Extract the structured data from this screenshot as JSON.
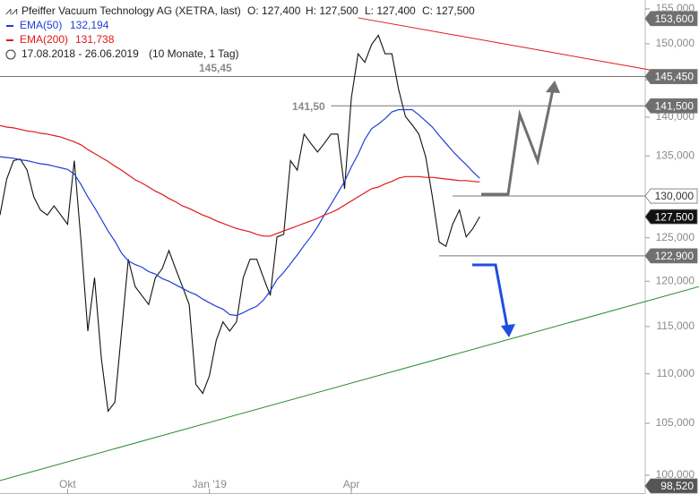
{
  "chart_data": {
    "type": "line",
    "title": "Pfeiffer Vacuum Technology AG (XETRA, last)",
    "ohlc": [
      "O: 127,400",
      "H: 127,500",
      "L: 127,400",
      "C: 127,500"
    ],
    "period": "17.08.2018 - 26.06.2019",
    "period_note": "(10 Monate, 1 Tag)",
    "log_scale": true,
    "categories": [
      null,
      null,
      null,
      null,
      null,
      null,
      null,
      null,
      null,
      null,
      "Okt",
      null,
      null,
      null,
      null,
      null,
      null,
      null,
      null,
      null,
      null,
      null,
      null,
      null,
      null,
      null,
      null,
      null,
      null,
      null,
      null,
      "Jan '19",
      null,
      null,
      null,
      null,
      null,
      null,
      null,
      null,
      null,
      null,
      null,
      null,
      null,
      null,
      null,
      null,
      null,
      null,
      null,
      null,
      "Apr",
      null,
      null,
      null,
      null,
      null,
      null,
      null,
      null,
      null,
      null,
      null,
      null,
      null,
      null,
      null,
      null,
      null,
      null,
      null
    ],
    "xlim": [
      0,
      95.5
    ],
    "ylim": [
      98.25,
      156.3
    ],
    "yticks": [
      {
        "value": 100,
        "label": "100,000"
      },
      {
        "value": 105,
        "label": "105,000"
      },
      {
        "value": 110,
        "label": "110,000"
      },
      {
        "value": 115,
        "label": "115,000"
      },
      {
        "value": 120,
        "label": "120,000"
      },
      {
        "value": 125,
        "label": "125,000"
      },
      {
        "value": 130,
        "label": "130,000"
      },
      {
        "value": 135,
        "label": "135,000"
      },
      {
        "value": 140,
        "label": "140,000"
      },
      {
        "value": 145,
        "label": "145,000"
      },
      {
        "value": 150,
        "label": "150,000"
      },
      {
        "value": 155,
        "label": "155,000"
      }
    ],
    "series": [
      {
        "color": "#111111",
        "values": [
          127.7,
          132.1,
          134.4,
          134.6,
          133.2,
          129.9,
          128.3,
          127.7,
          128.8,
          127.7,
          126.6,
          134.4,
          124.5,
          114.5,
          120.4,
          111.6,
          106.2,
          107.1,
          114.5,
          122.5,
          119.4,
          118.4,
          117.4,
          120.4,
          121.4,
          123.5,
          121.4,
          119.4,
          117.4,
          108.9,
          108.0,
          109.8,
          113.5,
          115.5,
          114.5,
          115.5,
          120.4,
          122.5,
          122.5,
          120.4,
          118.4,
          125.1,
          125.4,
          134.4,
          133.2,
          137.8,
          136.6,
          135.5,
          136.6,
          137.8,
          137.8,
          130.9,
          142.5,
          148.6,
          147.4,
          149.9,
          151.2,
          148.6,
          148.6,
          143.7,
          140.1,
          139.0,
          137.8,
          134.9,
          129.9,
          124.5,
          124.0,
          126.6,
          128.3,
          125.1,
          126.1,
          127.5
        ]
      },
      {
        "name": "EMA(50)",
        "value_label": "132,194",
        "color": "#1f3fd6",
        "values": [
          134.9,
          134.8,
          134.7,
          134.5,
          134.4,
          134.2,
          134.0,
          133.9,
          133.7,
          133.5,
          133.3,
          132.7,
          131.4,
          129.9,
          128.6,
          127.2,
          125.8,
          124.6,
          123.2,
          122.3,
          121.9,
          121.6,
          121.1,
          120.8,
          120.3,
          120.0,
          119.6,
          119.2,
          118.8,
          118.5,
          118.0,
          117.6,
          117.2,
          116.9,
          116.3,
          116.2,
          116.5,
          116.9,
          117.2,
          117.9,
          118.9,
          120.2,
          121.0,
          122.0,
          123.0,
          124.1,
          125.1,
          126.3,
          127.7,
          129.0,
          130.4,
          131.8,
          133.6,
          135.2,
          137.1,
          138.5,
          139.1,
          139.8,
          140.7,
          141.0,
          141.0,
          141.0,
          140.3,
          139.5,
          138.7,
          137.6,
          136.6,
          135.6,
          134.7,
          133.9,
          133.0,
          132.194
        ]
      },
      {
        "name": "EMA(200)",
        "value_label": "131,738",
        "color": "#e01818",
        "values": [
          138.9,
          138.7,
          138.6,
          138.4,
          138.2,
          138.1,
          137.9,
          137.8,
          137.6,
          137.4,
          137.1,
          136.8,
          136.4,
          135.8,
          135.3,
          134.8,
          134.3,
          133.7,
          133.2,
          132.6,
          132.0,
          131.6,
          131.1,
          130.6,
          130.2,
          129.7,
          129.3,
          128.8,
          128.5,
          128.1,
          127.7,
          127.4,
          127.0,
          126.7,
          126.4,
          126.1,
          125.9,
          125.7,
          125.4,
          125.2,
          125.2,
          125.5,
          125.8,
          126.1,
          126.4,
          126.7,
          127.0,
          127.3,
          127.7,
          128.0,
          128.4,
          128.9,
          129.4,
          129.9,
          130.4,
          130.9,
          131.1,
          131.5,
          131.8,
          132.2,
          132.4,
          132.4,
          132.4,
          132.3,
          132.3,
          132.2,
          132.1,
          132.0,
          131.9,
          131.9,
          131.8,
          131.738
        ]
      }
    ],
    "trendlines": [
      {
        "color": "#e01818",
        "x": [
          53,
          99
        ],
        "values": [
          153.7,
          145.9
        ]
      },
      {
        "color": "#2a8a2a",
        "x": [
          0,
          103.5
        ],
        "values": [
          99.5,
          119.4
        ]
      }
    ],
    "levels": [
      {
        "value": 153.6,
        "label": "153,600",
        "color": "#6f6f6f",
        "text_color": "#ffffff"
      },
      {
        "value": 145.45,
        "label": "145,450",
        "color": "#6f6f6f",
        "text_color": "#ffffff",
        "start": 0
      },
      {
        "value": 141.5,
        "label": "141,500",
        "color": "#6f6f6f",
        "text_color": "#ffffff",
        "start": 49
      },
      {
        "value": 130,
        "label": "130,000",
        "color": "#ffffff",
        "text_color": "#333333",
        "start": 67
      },
      {
        "value": 127.5,
        "label": "127,500",
        "color": "#111111",
        "text_color": "#ffffff"
      },
      {
        "value": 122.9,
        "label": "122,900",
        "color": "#6f6f6f",
        "text_color": "#ffffff",
        "start": 65
      },
      {
        "value": 98.52,
        "label": "98,520",
        "color": "#555555",
        "text_color": "#ffffff"
      }
    ],
    "annotations": [
      "145,45",
      "141,50"
    ]
  }
}
